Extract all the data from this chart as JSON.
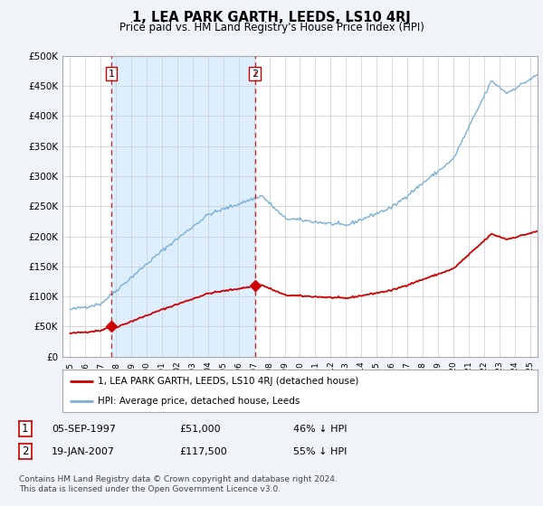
{
  "title": "1, LEA PARK GARTH, LEEDS, LS10 4RJ",
  "subtitle": "Price paid vs. HM Land Registry's House Price Index (HPI)",
  "legend_line1": "1, LEA PARK GARTH, LEEDS, LS10 4RJ (detached house)",
  "legend_line2": "HPI: Average price, detached house, Leeds",
  "annotation1_label": "1",
  "annotation1_date": "05-SEP-1997",
  "annotation1_price": "£51,000",
  "annotation1_hpi": "46% ↓ HPI",
  "annotation1_year": 1997.68,
  "annotation1_value": 51000,
  "annotation2_label": "2",
  "annotation2_date": "19-JAN-2007",
  "annotation2_price": "£117,500",
  "annotation2_hpi": "55% ↓ HPI",
  "annotation2_year": 2007.05,
  "annotation2_value": 117500,
  "price_color": "#cc0000",
  "hpi_color": "#7ab0d4",
  "shade_color": "#ddeeff",
  "background_color": "#f0f4f8",
  "plot_bg_color": "#ffffff",
  "footer_text": "Contains HM Land Registry data © Crown copyright and database right 2024.\nThis data is licensed under the Open Government Licence v3.0.",
  "ylim": [
    0,
    500000
  ],
  "yticks": [
    0,
    50000,
    100000,
    150000,
    200000,
    250000,
    300000,
    350000,
    400000,
    450000,
    500000
  ],
  "ytick_labels": [
    "£0",
    "£50K",
    "£100K",
    "£150K",
    "£200K",
    "£250K",
    "£300K",
    "£350K",
    "£400K",
    "£450K",
    "£500K"
  ],
  "xlim": [
    1994.5,
    2025.5
  ]
}
